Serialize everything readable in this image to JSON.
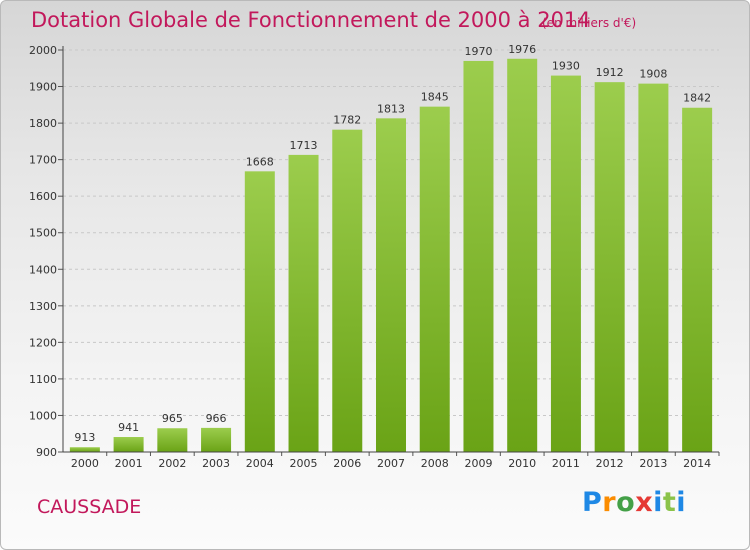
{
  "header": {
    "title": "Dotation Globale de Fonctionnement de 2000 à 2014",
    "subtitle": "(en milliers d'€)"
  },
  "footer": {
    "commune": "CAUSSADE",
    "logo_text": "Proxiti"
  },
  "colors": {
    "title": "#c2185b",
    "bar_light": "#9ccd4d",
    "bar_dark": "#6aa316",
    "grid": "#c8c8c8"
  },
  "chart_data": {
    "type": "bar",
    "title": "Dotation Globale de Fonctionnement de 2000 à 2014",
    "subtitle": "(en milliers d'€)",
    "xlabel": "",
    "ylabel": "",
    "ylim": [
      900,
      2000
    ],
    "yticks": [
      900,
      1000,
      1100,
      1200,
      1300,
      1400,
      1500,
      1600,
      1700,
      1800,
      1900,
      2000
    ],
    "grid": "horizontal dashed",
    "categories": [
      "2000",
      "2001",
      "2002",
      "2003",
      "2004",
      "2005",
      "2006",
      "2007",
      "2008",
      "2009",
      "2010",
      "2011",
      "2012",
      "2013",
      "2014"
    ],
    "values": [
      913,
      941,
      965,
      966,
      1668,
      1713,
      1782,
      1813,
      1845,
      1970,
      1976,
      1930,
      1912,
      1908,
      1842
    ]
  }
}
